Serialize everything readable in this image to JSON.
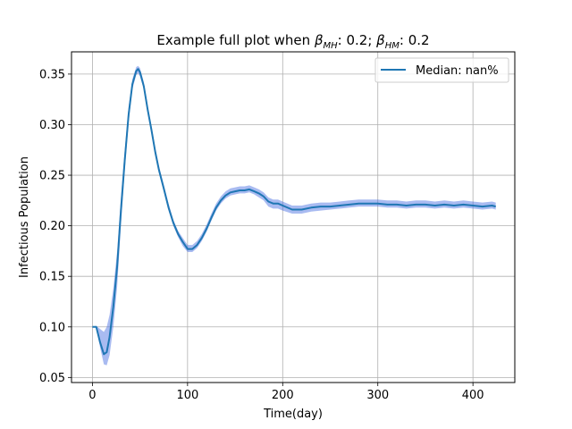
{
  "chart_data": {
    "type": "line",
    "title": {
      "prefix": "Example full plot when ",
      "beta1_symbol": "β",
      "beta1_sub": "MH",
      "beta1_value": ": 0.2; ",
      "beta2_symbol": "β",
      "beta2_sub": "HM",
      "beta2_value": ": 0.2"
    },
    "xlabel": "Time(day)",
    "ylabel": "Infectious Population",
    "xlim": [
      -22,
      444
    ],
    "ylim": [
      0.045,
      0.372
    ],
    "xticks": [
      0,
      100,
      200,
      300,
      400
    ],
    "yticks": [
      0.05,
      0.1,
      0.15,
      0.2,
      0.25,
      0.3,
      0.35
    ],
    "ytick_labels": [
      "0.05",
      "0.10",
      "0.15",
      "0.20",
      "0.25",
      "0.30",
      "0.35"
    ],
    "grid": true,
    "legend": {
      "position": "upper right",
      "entries": [
        "Median: nan%"
      ]
    },
    "colors": {
      "line": "#1f77b4",
      "band": "#4169e1"
    },
    "series": [
      {
        "name": "Median: nan%",
        "x": [
          0,
          4,
          8,
          12,
          15,
          18,
          22,
          26,
          30,
          34,
          38,
          42,
          46,
          48,
          50,
          54,
          58,
          62,
          66,
          70,
          75,
          80,
          85,
          90,
          95,
          100,
          105,
          110,
          115,
          120,
          125,
          130,
          135,
          140,
          145,
          150,
          155,
          160,
          165,
          170,
          175,
          180,
          185,
          190,
          195,
          200,
          210,
          220,
          230,
          240,
          250,
          260,
          270,
          280,
          290,
          300,
          310,
          320,
          330,
          340,
          350,
          360,
          370,
          380,
          390,
          400,
          410,
          420,
          424
        ],
        "values": [
          0.1,
          0.1,
          0.085,
          0.073,
          0.075,
          0.09,
          0.12,
          0.16,
          0.215,
          0.265,
          0.31,
          0.34,
          0.353,
          0.355,
          0.352,
          0.338,
          0.315,
          0.295,
          0.273,
          0.255,
          0.237,
          0.218,
          0.203,
          0.192,
          0.184,
          0.177,
          0.177,
          0.181,
          0.188,
          0.197,
          0.208,
          0.218,
          0.225,
          0.23,
          0.233,
          0.234,
          0.235,
          0.235,
          0.236,
          0.234,
          0.232,
          0.229,
          0.224,
          0.222,
          0.222,
          0.22,
          0.216,
          0.216,
          0.218,
          0.219,
          0.219,
          0.22,
          0.221,
          0.222,
          0.222,
          0.222,
          0.221,
          0.221,
          0.22,
          0.221,
          0.221,
          0.22,
          0.221,
          0.22,
          0.221,
          0.22,
          0.219,
          0.22,
          0.219
        ],
        "lower": [
          0.1,
          0.099,
          0.08,
          0.063,
          0.062,
          0.072,
          0.1,
          0.14,
          0.2,
          0.255,
          0.302,
          0.335,
          0.349,
          0.351,
          0.348,
          0.335,
          0.312,
          0.292,
          0.27,
          0.252,
          0.234,
          0.215,
          0.2,
          0.189,
          0.18,
          0.174,
          0.174,
          0.178,
          0.185,
          0.194,
          0.205,
          0.215,
          0.222,
          0.227,
          0.23,
          0.231,
          0.232,
          0.232,
          0.233,
          0.231,
          0.228,
          0.225,
          0.219,
          0.217,
          0.217,
          0.215,
          0.212,
          0.212,
          0.214,
          0.215,
          0.216,
          0.217,
          0.218,
          0.219,
          0.219,
          0.219,
          0.218,
          0.218,
          0.217,
          0.218,
          0.218,
          0.217,
          0.218,
          0.217,
          0.218,
          0.217,
          0.216,
          0.217,
          0.216
        ],
        "upper": [
          0.1,
          0.101,
          0.098,
          0.095,
          0.1,
          0.112,
          0.138,
          0.175,
          0.228,
          0.275,
          0.318,
          0.345,
          0.357,
          0.358,
          0.356,
          0.342,
          0.319,
          0.299,
          0.277,
          0.259,
          0.241,
          0.222,
          0.206,
          0.195,
          0.188,
          0.181,
          0.181,
          0.185,
          0.192,
          0.201,
          0.212,
          0.222,
          0.229,
          0.234,
          0.237,
          0.238,
          0.239,
          0.239,
          0.24,
          0.238,
          0.236,
          0.233,
          0.228,
          0.226,
          0.226,
          0.224,
          0.22,
          0.22,
          0.222,
          0.223,
          0.223,
          0.224,
          0.225,
          0.226,
          0.226,
          0.226,
          0.225,
          0.225,
          0.224,
          0.225,
          0.225,
          0.224,
          0.225,
          0.224,
          0.225,
          0.224,
          0.223,
          0.224,
          0.223
        ]
      }
    ]
  }
}
